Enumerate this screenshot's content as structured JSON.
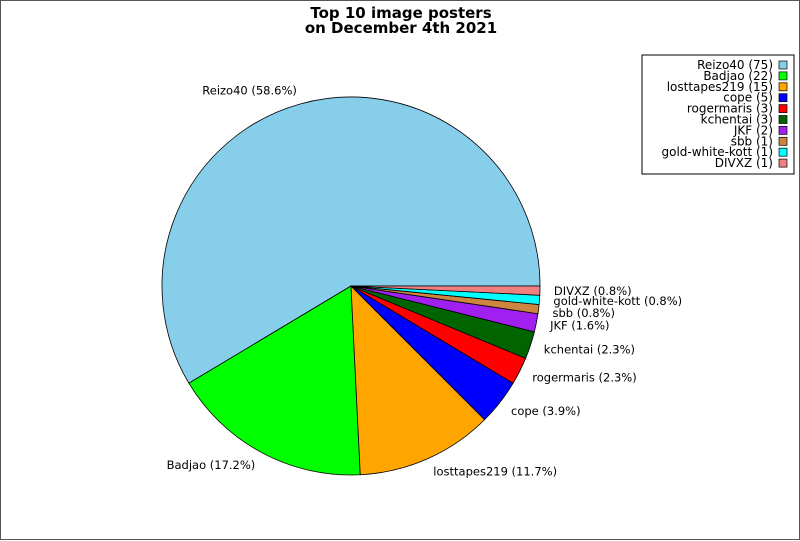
{
  "chart_data": {
    "type": "pie",
    "title": [
      "Top 10 image posters",
      "on December 4th 2021"
    ],
    "slices": [
      {
        "name": "Reizo40",
        "value": 75,
        "percent_label": "Reizo40 (58.6%)",
        "legend_label": "Reizo40 (75)",
        "color": "#87ceeb"
      },
      {
        "name": "Badjao",
        "value": 22,
        "percent_label": "Badjao (17.2%)",
        "legend_label": "Badjao (22)",
        "color": "#00ff00"
      },
      {
        "name": "losttapes219",
        "value": 15,
        "percent_label": "losttapes219 (11.7%)",
        "legend_label": "losttapes219 (15)",
        "color": "#ffa500"
      },
      {
        "name": "cope",
        "value": 5,
        "percent_label": "cope (3.9%)",
        "legend_label": "cope (5)",
        "color": "#0000ff"
      },
      {
        "name": "rogermaris",
        "value": 3,
        "percent_label": "rogermaris (2.3%)",
        "legend_label": "rogermaris (3)",
        "color": "#ff0000"
      },
      {
        "name": "kchentai",
        "value": 3,
        "percent_label": "kchentai (2.3%)",
        "legend_label": "kchentai (3)",
        "color": "#006400"
      },
      {
        "name": "JKF",
        "value": 2,
        "percent_label": "JKF (1.6%)",
        "legend_label": "JKF (2)",
        "color": "#a020f0"
      },
      {
        "name": "sbb",
        "value": 1,
        "percent_label": "sbb (0.8%)",
        "legend_label": "sbb (1)",
        "color": "#cd853f"
      },
      {
        "name": "gold-white-kott",
        "value": 1,
        "percent_label": "gold-white-kott (0.8%)",
        "legend_label": "gold-white-kott (1)",
        "color": "#00ffff"
      },
      {
        "name": "DIVXZ",
        "value": 1,
        "percent_label": "DIVXZ (0.8%)",
        "legend_label": "DIVXZ (1)",
        "color": "#f08080"
      }
    ],
    "legend_placement": "top-right",
    "start": "east",
    "direction": "counterclockwise"
  }
}
